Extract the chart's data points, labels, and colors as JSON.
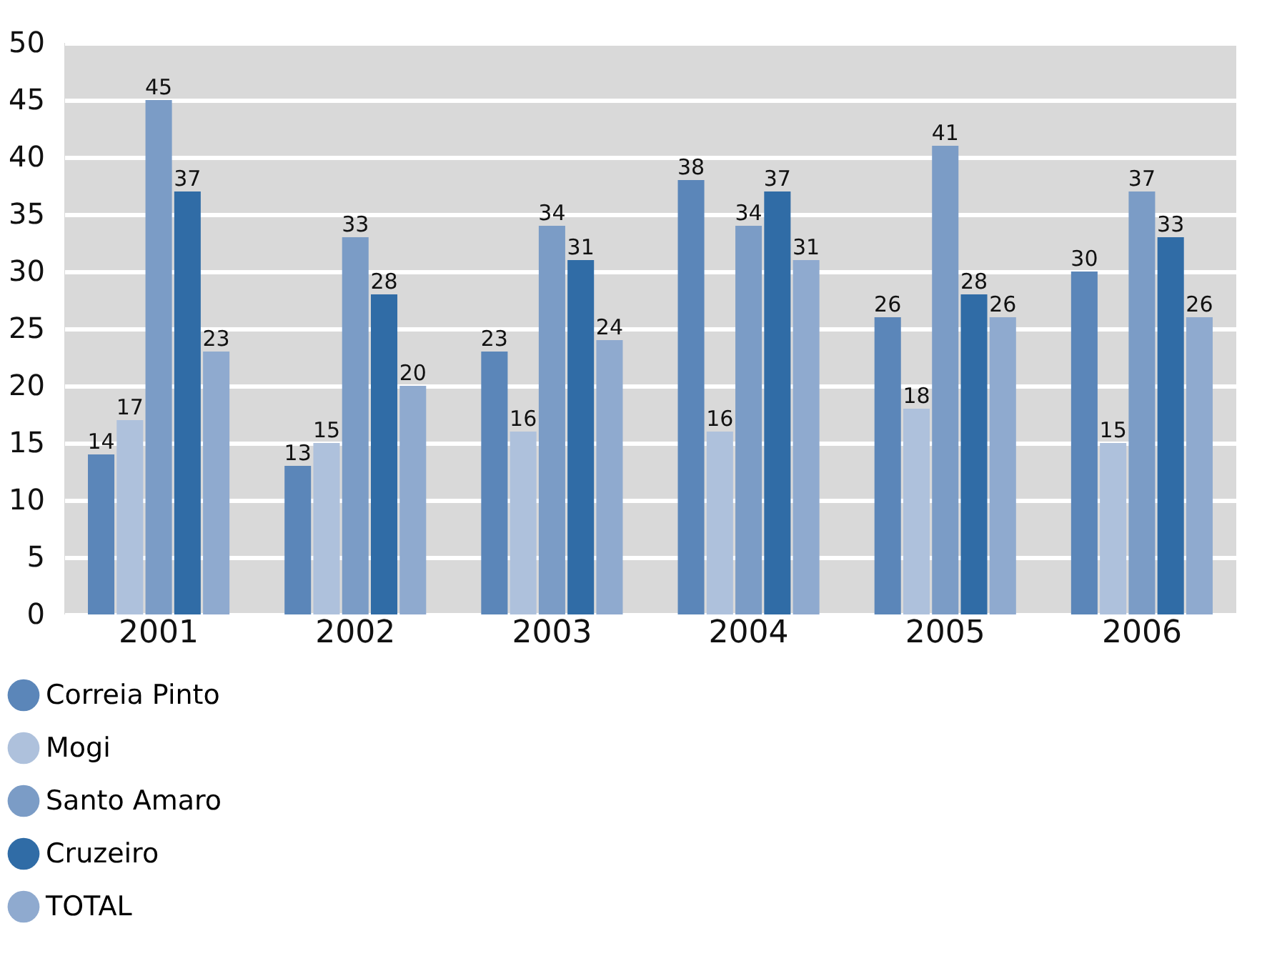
{
  "chart_data": {
    "type": "bar",
    "categories": [
      "2001",
      "2002",
      "2003",
      "2004",
      "2005",
      "2006"
    ],
    "series": [
      {
        "name": "Correia Pinto",
        "color": "#5b86b9",
        "values": [
          14,
          13,
          23,
          38,
          26,
          30
        ]
      },
      {
        "name": "Mogi",
        "color": "#aec1dc",
        "values": [
          17,
          15,
          16,
          16,
          18,
          15
        ]
      },
      {
        "name": "Santo Amaro",
        "color": "#7b9cc6",
        "values": [
          45,
          33,
          34,
          34,
          41,
          37
        ]
      },
      {
        "name": "Cruzeiro",
        "color": "#306ca6",
        "values": [
          37,
          28,
          31,
          37,
          28,
          33
        ]
      },
      {
        "name": "TOTAL",
        "color": "#8faacf",
        "values": [
          23,
          20,
          24,
          31,
          26,
          26
        ]
      }
    ],
    "ylim": [
      0,
      50
    ],
    "yticks": [
      0,
      5,
      10,
      15,
      20,
      25,
      30,
      35,
      40,
      45,
      50
    ],
    "grid": "y",
    "legend": "bottom left",
    "data_labels": true
  }
}
